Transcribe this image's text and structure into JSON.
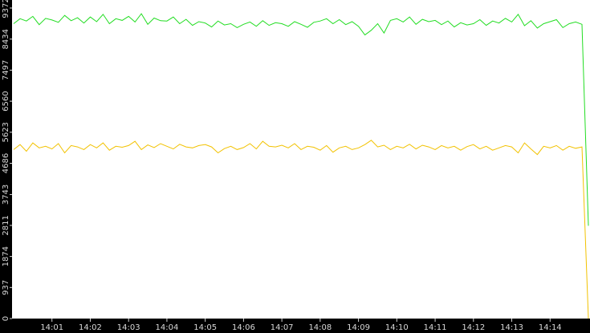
{
  "chart_data": {
    "type": "line",
    "categories": [
      null,
      null,
      null,
      null,
      null,
      null,
      "14:01",
      null,
      null,
      null,
      null,
      null,
      "14:02",
      null,
      null,
      null,
      null,
      null,
      "14:03",
      null,
      null,
      null,
      null,
      null,
      "14:04",
      null,
      null,
      null,
      null,
      null,
      "14:05",
      null,
      null,
      null,
      null,
      null,
      "14:06",
      null,
      null,
      null,
      null,
      null,
      "14:07",
      null,
      null,
      null,
      null,
      null,
      "14:08",
      null,
      null,
      null,
      null,
      null,
      "14:09",
      null,
      null,
      null,
      null,
      null,
      "14:10",
      null,
      null,
      null,
      null,
      null,
      "14:11",
      null,
      null,
      null,
      null,
      null,
      "14:12",
      null,
      null,
      null,
      null,
      null,
      "14:13",
      null,
      null,
      null,
      null,
      null,
      "14:14",
      null,
      null,
      null,
      null,
      null,
      null
    ],
    "series": [
      {
        "color": "#22dd22",
        "values": [
          8900,
          9050,
          8980,
          9120,
          8870,
          9060,
          9010,
          8940,
          9150,
          8990,
          9080,
          8920,
          9100,
          8960,
          9180,
          8900,
          9050,
          9000,
          9120,
          8950,
          9200,
          8880,
          9070,
          8990,
          8980,
          9100,
          8900,
          9030,
          8850,
          8960,
          8920,
          8800,
          8980,
          8860,
          8900,
          8780,
          8880,
          8950,
          8820,
          8990,
          8850,
          8930,
          8900,
          8820,
          8960,
          8880,
          8790,
          8940,
          8980,
          9050,
          8900,
          9020,
          8870,
          8960,
          8820,
          8560,
          8700,
          8900,
          8620,
          9000,
          9050,
          8950,
          9100,
          8880,
          9030,
          8960,
          9000,
          8870,
          8980,
          8800,
          8930,
          8860,
          8900,
          9020,
          8850,
          8980,
          8920,
          9060,
          8950,
          9180,
          8840,
          8990,
          8770,
          8900,
          8960,
          9020,
          8780,
          8900,
          8950,
          8880,
          2800
        ]
      },
      {
        "color": "#f2c200",
        "values": [
          5100,
          5250,
          5050,
          5300,
          5150,
          5200,
          5120,
          5280,
          5000,
          5220,
          5180,
          5100,
          5250,
          5150,
          5300,
          5080,
          5200,
          5170,
          5220,
          5350,
          5100,
          5240,
          5160,
          5280,
          5200,
          5120,
          5260,
          5180,
          5150,
          5220,
          5250,
          5180,
          5000,
          5130,
          5200,
          5100,
          5160,
          5280,
          5120,
          5350,
          5200,
          5180,
          5230,
          5150,
          5280,
          5100,
          5200,
          5170,
          5080,
          5220,
          5020,
          5150,
          5200,
          5100,
          5150,
          5250,
          5380,
          5180,
          5230,
          5100,
          5200,
          5150,
          5260,
          5120,
          5230,
          5180,
          5100,
          5220,
          5150,
          5200,
          5080,
          5190,
          5250,
          5120,
          5200,
          5080,
          5150,
          5220,
          5180,
          5000,
          5300,
          5120,
          4950,
          5200,
          5150,
          5220,
          5080,
          5200,
          5140,
          5180,
          0
        ]
      }
    ],
    "ylim": [
      0,
      9372
    ],
    "yticks": [
      0,
      937,
      1874,
      2811,
      3743,
      4686,
      5623,
      6560,
      7497,
      8434,
      9372
    ]
  }
}
